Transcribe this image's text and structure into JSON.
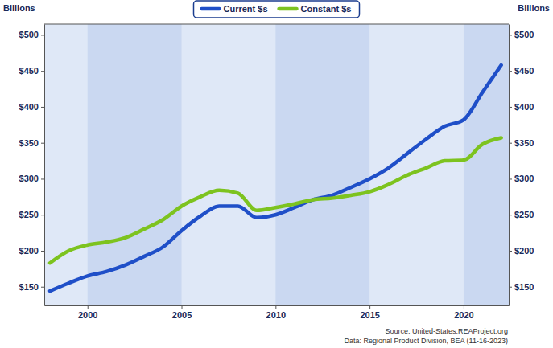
{
  "chart_data": {
    "type": "line",
    "y_label": "Billions",
    "y2_label": "Billions",
    "source": "Source: United-States.REAProject.org",
    "note": "Data: Regional Product Division, BEA (11-16-2023)",
    "x": [
      1998,
      1999,
      2000,
      2001,
      2002,
      2003,
      2004,
      2005,
      2006,
      2007,
      2008,
      2009,
      2010,
      2011,
      2012,
      2013,
      2014,
      2015,
      2016,
      2017,
      2018,
      2019,
      2020,
      2021,
      2022
    ],
    "series": [
      {
        "name": "Current $s",
        "color": "#1f4fc8",
        "values": [
          144,
          155,
          165,
          171,
          180,
          192,
          205,
          228,
          248,
          262,
          262,
          246,
          250,
          260,
          271,
          277,
          288,
          300,
          315,
          335,
          355,
          373,
          382,
          420,
          458
        ]
      },
      {
        "name": "Constant $s",
        "color": "#7dc31f",
        "values": [
          183,
          200,
          208,
          212,
          218,
          230,
          243,
          262,
          275,
          284,
          280,
          256,
          260,
          265,
          271,
          273,
          277,
          282,
          292,
          305,
          315,
          325,
          326,
          348,
          357
        ]
      }
    ],
    "xlim": [
      1997.7,
      2022.4
    ],
    "xticks": [
      2000,
      2005,
      2010,
      2015,
      2020
    ],
    "ylim": [
      124,
      515
    ],
    "yticks": [
      {
        "value": 150,
        "label": "$150"
      },
      {
        "value": 200,
        "label": "$200"
      },
      {
        "value": 250,
        "label": "$250"
      },
      {
        "value": 300,
        "label": "$300"
      },
      {
        "value": 350,
        "label": "$350"
      },
      {
        "value": 400,
        "label": "$400"
      },
      {
        "value": 450,
        "label": "$450"
      },
      {
        "value": 500,
        "label": "$500"
      }
    ],
    "y2lim": [
      124,
      515
    ],
    "y2ticks": [
      {
        "value": 150,
        "label": "$150"
      },
      {
        "value": 200,
        "label": "$200"
      },
      {
        "value": 250,
        "label": "$250"
      },
      {
        "value": 300,
        "label": "$300"
      },
      {
        "value": 350,
        "label": "$350"
      },
      {
        "value": 400,
        "label": "$400"
      },
      {
        "value": 450,
        "label": "$450"
      },
      {
        "value": 500,
        "label": "$500"
      }
    ],
    "grid": false,
    "legend": "top"
  }
}
